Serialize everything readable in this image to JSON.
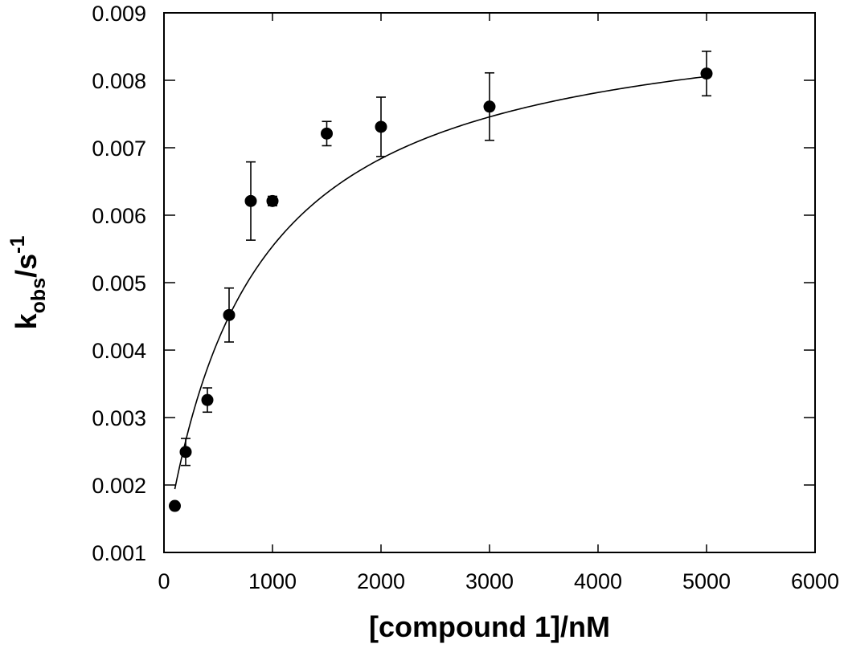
{
  "chart_data": {
    "type": "scatter",
    "title": "",
    "xlabel": "[compound 1]/nM",
    "ylabel": {
      "base": "k",
      "subscript": "obs",
      "unit": "/s",
      "superscript": "-1"
    },
    "xlim": [
      0,
      6000
    ],
    "ylim": [
      0.001,
      0.009
    ],
    "x_ticks": [
      0,
      1000,
      2000,
      3000,
      4000,
      5000,
      6000
    ],
    "x_tick_labels": [
      "0",
      "1000",
      "2000",
      "3000",
      "4000",
      "5000",
      "6000"
    ],
    "y_ticks": [
      0.001,
      0.002,
      0.003,
      0.004,
      0.005,
      0.006,
      0.007,
      0.008,
      0.009
    ],
    "y_tick_labels": [
      "0.001",
      "0.002",
      "0.003",
      "0.004",
      "0.005",
      "0.006",
      "0.007",
      "0.008",
      "0.009"
    ],
    "grid": false,
    "series": [
      {
        "x": [
          100,
          200,
          400,
          600,
          800,
          1000,
          1500,
          2000,
          3000,
          5000
        ],
        "y": [
          0.00169,
          0.00249,
          0.00326,
          0.00452,
          0.00621,
          0.00621,
          0.00721,
          0.00731,
          0.00761,
          0.0081
        ],
        "y_err": [
          4e-05,
          0.0002,
          0.00018,
          0.0004,
          0.00058,
          7e-05,
          0.00018,
          0.00044,
          0.0005,
          0.00033
        ],
        "marker": "filled-circle",
        "color": "#000000"
      }
    ],
    "fit_curve": {
      "type": "saturation",
      "equation": "y = y0 + A*x/(K+x)",
      "params": {
        "y0": 0.00105,
        "A": 0.00815,
        "K": 816
      },
      "x_range": [
        100,
        5000
      ],
      "color": "#000000"
    }
  }
}
